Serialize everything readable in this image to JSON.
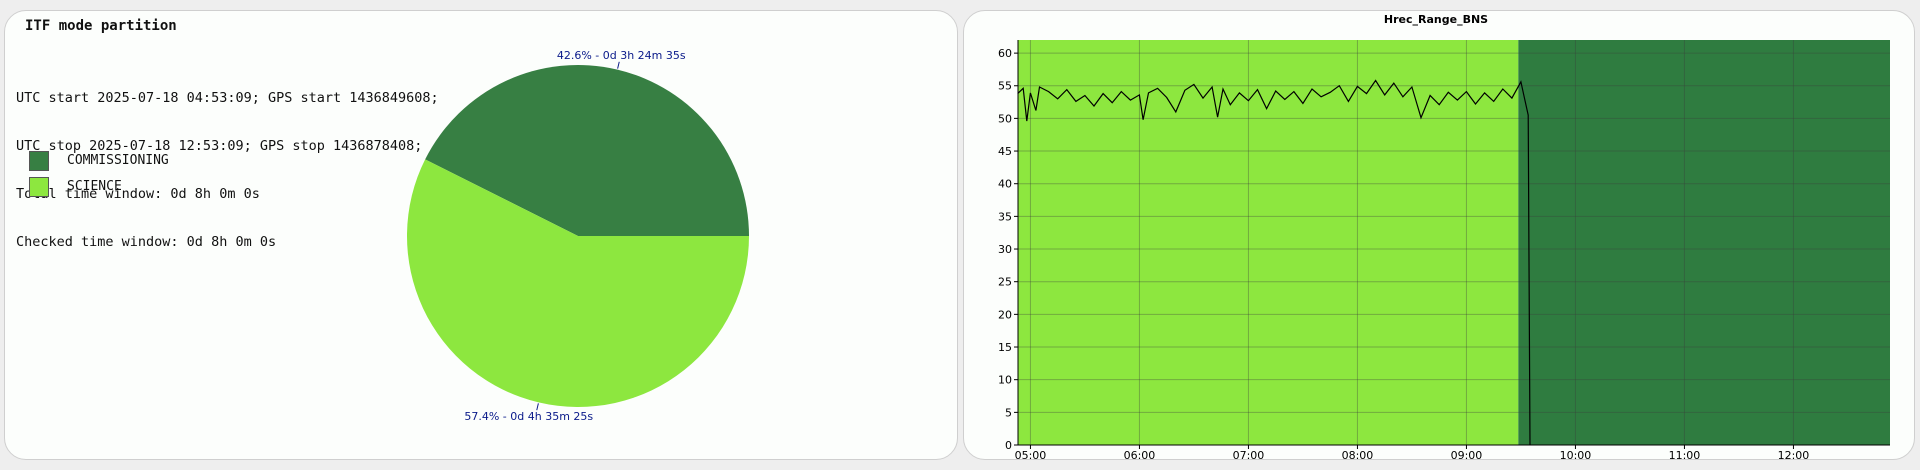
{
  "left_panel": {
    "title": "ITF mode partition",
    "info_lines": [
      "UTC start 2025-07-18 04:53:09; GPS start 1436849608;",
      "UTC stop 2025-07-18 12:53:09; GPS stop 1436878408;",
      "Total time window: 0d 8h 0m 0s",
      "Checked time window: 0d 8h 0m 0s"
    ],
    "legend": [
      {
        "label": "COMMISSIONING",
        "color": "#377f43"
      },
      {
        "label": "SCIENCE",
        "color": "#8de73f"
      }
    ]
  },
  "chart_data": [
    {
      "type": "pie",
      "slices": [
        {
          "name": "COMMISSIONING",
          "percent": 42.6,
          "label": "42.6% - 0d 3h 24m 35s",
          "color": "#377f43"
        },
        {
          "name": "SCIENCE",
          "percent": 57.4,
          "label": "57.4% - 0d 4h 35m 25s",
          "color": "#8de73f"
        }
      ],
      "label_color": "#0a1a8a"
    },
    {
      "type": "line",
      "title": "Hrec_Range_BNS",
      "xlabel": "",
      "ylabel": "",
      "x_start": "04:53:09",
      "x_end": "12:53:09",
      "xticks": [
        "05:00",
        "06:00",
        "07:00",
        "08:00",
        "09:00",
        "10:00",
        "11:00",
        "12:00"
      ],
      "ylim": [
        0,
        62
      ],
      "yticks": [
        0,
        5,
        10,
        15,
        20,
        25,
        30,
        35,
        40,
        45,
        50,
        55,
        60
      ],
      "grid": true,
      "background_segments": [
        {
          "name": "SCIENCE",
          "from": "04:53:09",
          "to": "09:28:34",
          "color": "#8de73f"
        },
        {
          "name": "COMMISSIONING",
          "from": "09:28:34",
          "to": "12:53:09",
          "color": "#2f7c40"
        }
      ],
      "series": [
        {
          "color": "#000000",
          "points": [
            [
              "04:53",
              53.8
            ],
            [
              "04:56",
              54.6
            ],
            [
              "04:58",
              49.6
            ],
            [
              "05:00",
              53.9
            ],
            [
              "05:03",
              51.2
            ],
            [
              "05:05",
              54.8
            ],
            [
              "05:10",
              54.1
            ],
            [
              "05:15",
              53.0
            ],
            [
              "05:20",
              54.4
            ],
            [
              "05:25",
              52.6
            ],
            [
              "05:30",
              53.5
            ],
            [
              "05:35",
              51.9
            ],
            [
              "05:40",
              53.8
            ],
            [
              "05:45",
              52.4
            ],
            [
              "05:50",
              54.1
            ],
            [
              "05:55",
              52.8
            ],
            [
              "06:00",
              53.6
            ],
            [
              "06:02",
              49.8
            ],
            [
              "06:05",
              53.9
            ],
            [
              "06:10",
              54.6
            ],
            [
              "06:15",
              53.2
            ],
            [
              "06:20",
              51.0
            ],
            [
              "06:25",
              54.3
            ],
            [
              "06:30",
              55.2
            ],
            [
              "06:35",
              53.1
            ],
            [
              "06:40",
              54.8
            ],
            [
              "06:43",
              50.2
            ],
            [
              "06:46",
              54.5
            ],
            [
              "06:50",
              52.1
            ],
            [
              "06:55",
              53.9
            ],
            [
              "07:00",
              52.7
            ],
            [
              "07:05",
              54.4
            ],
            [
              "07:10",
              51.5
            ],
            [
              "07:15",
              54.2
            ],
            [
              "07:20",
              52.9
            ],
            [
              "07:25",
              54.1
            ],
            [
              "07:30",
              52.3
            ],
            [
              "07:35",
              54.5
            ],
            [
              "07:40",
              53.3
            ],
            [
              "07:45",
              54.0
            ],
            [
              "07:50",
              55.0
            ],
            [
              "07:55",
              52.6
            ],
            [
              "08:00",
              54.9
            ],
            [
              "08:05",
              53.8
            ],
            [
              "08:10",
              55.8
            ],
            [
              "08:15",
              53.6
            ],
            [
              "08:20",
              55.4
            ],
            [
              "08:25",
              53.3
            ],
            [
              "08:30",
              54.8
            ],
            [
              "08:35",
              50.1
            ],
            [
              "08:40",
              53.5
            ],
            [
              "08:45",
              52.1
            ],
            [
              "08:50",
              54.0
            ],
            [
              "08:55",
              52.8
            ],
            [
              "09:00",
              54.1
            ],
            [
              "09:05",
              52.2
            ],
            [
              "09:10",
              53.9
            ],
            [
              "09:15",
              52.6
            ],
            [
              "09:20",
              54.5
            ],
            [
              "09:25",
              53.1
            ],
            [
              "09:30",
              55.6
            ],
            [
              "09:32",
              53.0
            ],
            [
              "09:34",
              50.5
            ],
            [
              "09:35",
              0.0
            ]
          ]
        }
      ]
    }
  ]
}
